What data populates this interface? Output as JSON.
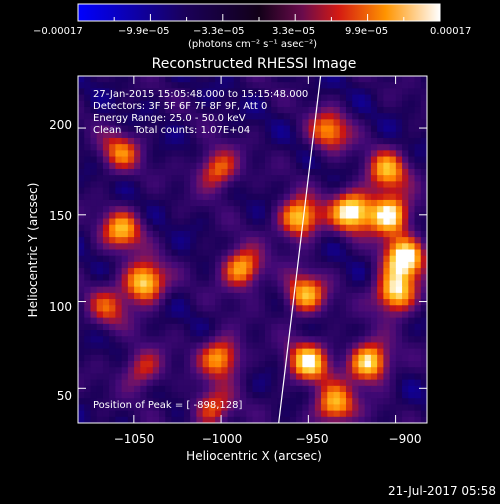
{
  "chart_data": {
    "type": "heatmap",
    "title": "Reconstructed RHESSI Image",
    "xlabel": "Heliocentric X (arcsec)",
    "ylabel": "Heliocentric Y (arcsec)",
    "xlim": [
      -1082,
      -882
    ],
    "ylim": [
      30,
      230
    ],
    "xticks": [
      -1050,
      -1000,
      -950,
      -900
    ],
    "xtick_labels": [
      "−1050",
      "−1000",
      "−950",
      "−900"
    ],
    "yticks": [
      50,
      100,
      150,
      200
    ],
    "ytick_labels": [
      "50",
      "100",
      "150",
      "200"
    ],
    "colorbar": {
      "min": -0.00017,
      "max": 0.00017,
      "tick_labels": [
        "−0.00017",
        "−9.9e−05",
        "−3.3e−05",
        "3.3e−05",
        "9.9e−05",
        "0.00017"
      ],
      "unit_label": "(photons cm⁻² s⁻¹ asec⁻²)"
    },
    "annotations": [
      "27-Jan-2015 15:05:48.000 to 15:15:48.000",
      "Detectors: 3F 5F 6F 7F 8F 9F, Att 0",
      "Energy Range: 25.0 - 50.0 keV",
      "Clean    Total counts: 1.07E+04"
    ],
    "peak_label": "Position of Peak = [ -898,128]",
    "limb_line": [
      [
        -967,
        30
      ],
      [
        -943,
        230
      ]
    ],
    "hot_spots": [
      {
        "x": -1044,
        "y": 111,
        "v": 1.0
      },
      {
        "x": -988,
        "y": 119,
        "v": 0.85
      },
      {
        "x": -1002,
        "y": 176,
        "v": 0.7
      },
      {
        "x": -1058,
        "y": 186,
        "v": 0.6
      },
      {
        "x": -1057,
        "y": 141,
        "v": 0.75
      },
      {
        "x": -1000,
        "y": 68,
        "v": 0.8
      },
      {
        "x": -1045,
        "y": 61,
        "v": 0.55
      },
      {
        "x": -955,
        "y": 148,
        "v": 0.95
      },
      {
        "x": -925,
        "y": 152,
        "v": 1.0
      },
      {
        "x": -903,
        "y": 150,
        "v": 1.0
      },
      {
        "x": -900,
        "y": 105,
        "v": 1.0
      },
      {
        "x": -895,
        "y": 125,
        "v": 1.0
      },
      {
        "x": -915,
        "y": 65,
        "v": 1.0
      },
      {
        "x": -950,
        "y": 65,
        "v": 0.9
      },
      {
        "x": -935,
        "y": 40,
        "v": 0.85
      },
      {
        "x": -952,
        "y": 104,
        "v": 0.8
      },
      {
        "x": -938,
        "y": 198,
        "v": 0.7
      },
      {
        "x": -905,
        "y": 175,
        "v": 0.75
      },
      {
        "x": -1005,
        "y": 38,
        "v": 0.6
      },
      {
        "x": -1065,
        "y": 96,
        "v": 0.5
      }
    ]
  },
  "footer": {
    "timestamp": "21-Jul-2017 05:58"
  }
}
